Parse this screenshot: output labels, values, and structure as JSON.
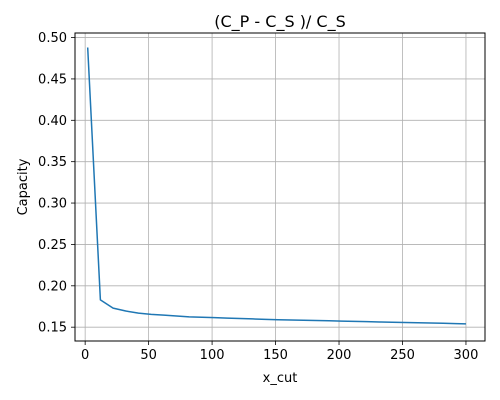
{
  "chart_data": {
    "type": "line",
    "title": "(C_P - C_S )/ C_S",
    "xlabel": "x_cut",
    "ylabel": "Capacity",
    "xlim": [
      -8,
      315
    ],
    "ylim": [
      0.1333,
      0.5055
    ],
    "x_ticks": [
      0,
      50,
      100,
      150,
      200,
      250,
      300
    ],
    "y_ticks": [
      0.15,
      0.2,
      0.25,
      0.3,
      0.35,
      0.4,
      0.45,
      0.5
    ],
    "y_tick_labels": [
      "0.15",
      "0.20",
      "0.25",
      "0.30",
      "0.35",
      "0.40",
      "0.45",
      "0.50"
    ],
    "grid": true,
    "color": "#1f77b4",
    "series": [
      {
        "x": [
          2,
          12,
          22,
          32,
          42,
          52,
          62,
          72,
          82,
          92,
          102,
          112,
          122,
          132,
          142,
          152,
          162,
          172,
          182,
          192,
          202,
          212,
          222,
          232,
          242,
          252,
          262,
          272,
          282,
          292,
          300
        ],
        "y": [
          0.488,
          0.183,
          0.173,
          0.1695,
          0.167,
          0.1655,
          0.1645,
          0.1635,
          0.1625,
          0.162,
          0.1615,
          0.161,
          0.1605,
          0.16,
          0.1595,
          0.159,
          0.1587,
          0.1583,
          0.158,
          0.1577,
          0.1573,
          0.157,
          0.1567,
          0.1563,
          0.156,
          0.1557,
          0.1553,
          0.155,
          0.1547,
          0.1543,
          0.154
        ]
      }
    ]
  }
}
